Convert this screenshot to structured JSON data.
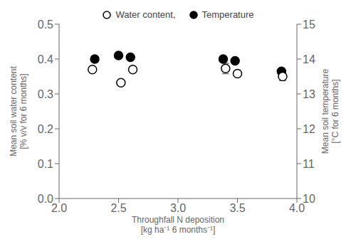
{
  "chart_data": {
    "type": "scatter",
    "xlabel": "Throughfall N deposition\n[kg ha⁻¹ 6 months⁻¹]",
    "ylabel": "Mean soil water content\n[% v/v for 6 months]",
    "y2label": "Mean soil temperature\n[°C for 6 months]",
    "xlim": [
      2.0,
      4.0
    ],
    "xticks": [
      {
        "value": 2.0,
        "label": "2.0"
      },
      2.5,
      {
        "value": 3.0,
        "label": "3.0"
      },
      3.5,
      {
        "value": 4.0,
        "label": "4.0"
      }
    ],
    "ylim": [
      0.0,
      0.5
    ],
    "yticks": [
      {
        "value": 0.0,
        "label": "0.0"
      },
      0.1,
      0.2,
      0.3,
      0.4,
      0.5
    ],
    "y2lim": [
      10,
      15
    ],
    "y2ticks": [
      10,
      11,
      12,
      13,
      14,
      15
    ],
    "grid": false,
    "legend": "top",
    "series": [
      {
        "name": "Water content,",
        "x": [
          2.28,
          2.52,
          2.62,
          3.4,
          3.5,
          3.88
        ],
        "values": [
          0.37,
          0.332,
          0.37,
          0.373,
          0.358,
          0.35
        ],
        "error": [
          0.0,
          0.0,
          0.0,
          0.015,
          0.0,
          0.012
        ],
        "color": "#000000",
        "marker": "open_circle"
      },
      {
        "name": "Temperature",
        "axis": "y2",
        "x": [
          2.3,
          2.5,
          2.6,
          3.38,
          3.48,
          3.87
        ],
        "values": [
          14.0,
          14.1,
          14.05,
          14.0,
          13.95,
          13.65
        ],
        "color": "#000000",
        "marker": "filled_circle"
      }
    ]
  }
}
